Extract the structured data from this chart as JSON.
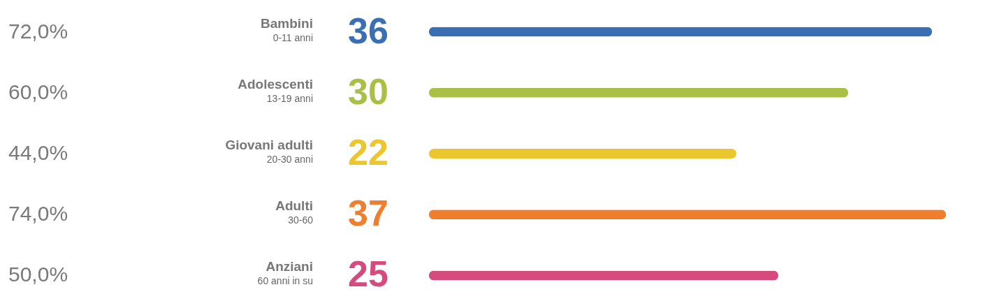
{
  "chart_data": {
    "type": "bar",
    "orientation": "horizontal",
    "categories": [
      "Bambini\n0-11 anni",
      "Adolescenti\n13-19 anni",
      "Giovani adulti\n20-30 anni",
      "Adulti\n30-60",
      "Anziani\n60 anni in su"
    ],
    "values": [
      36,
      30,
      22,
      37,
      25
    ],
    "colors": [
      "#3b6fb4",
      "#a9c047",
      "#ecc62f",
      "#ef7f2f",
      "#d64b7e"
    ],
    "data_labels": true,
    "annotations": [
      "72,0%",
      "60,0%",
      "44,0%",
      "74,0%",
      "50,0%"
    ]
  }
}
